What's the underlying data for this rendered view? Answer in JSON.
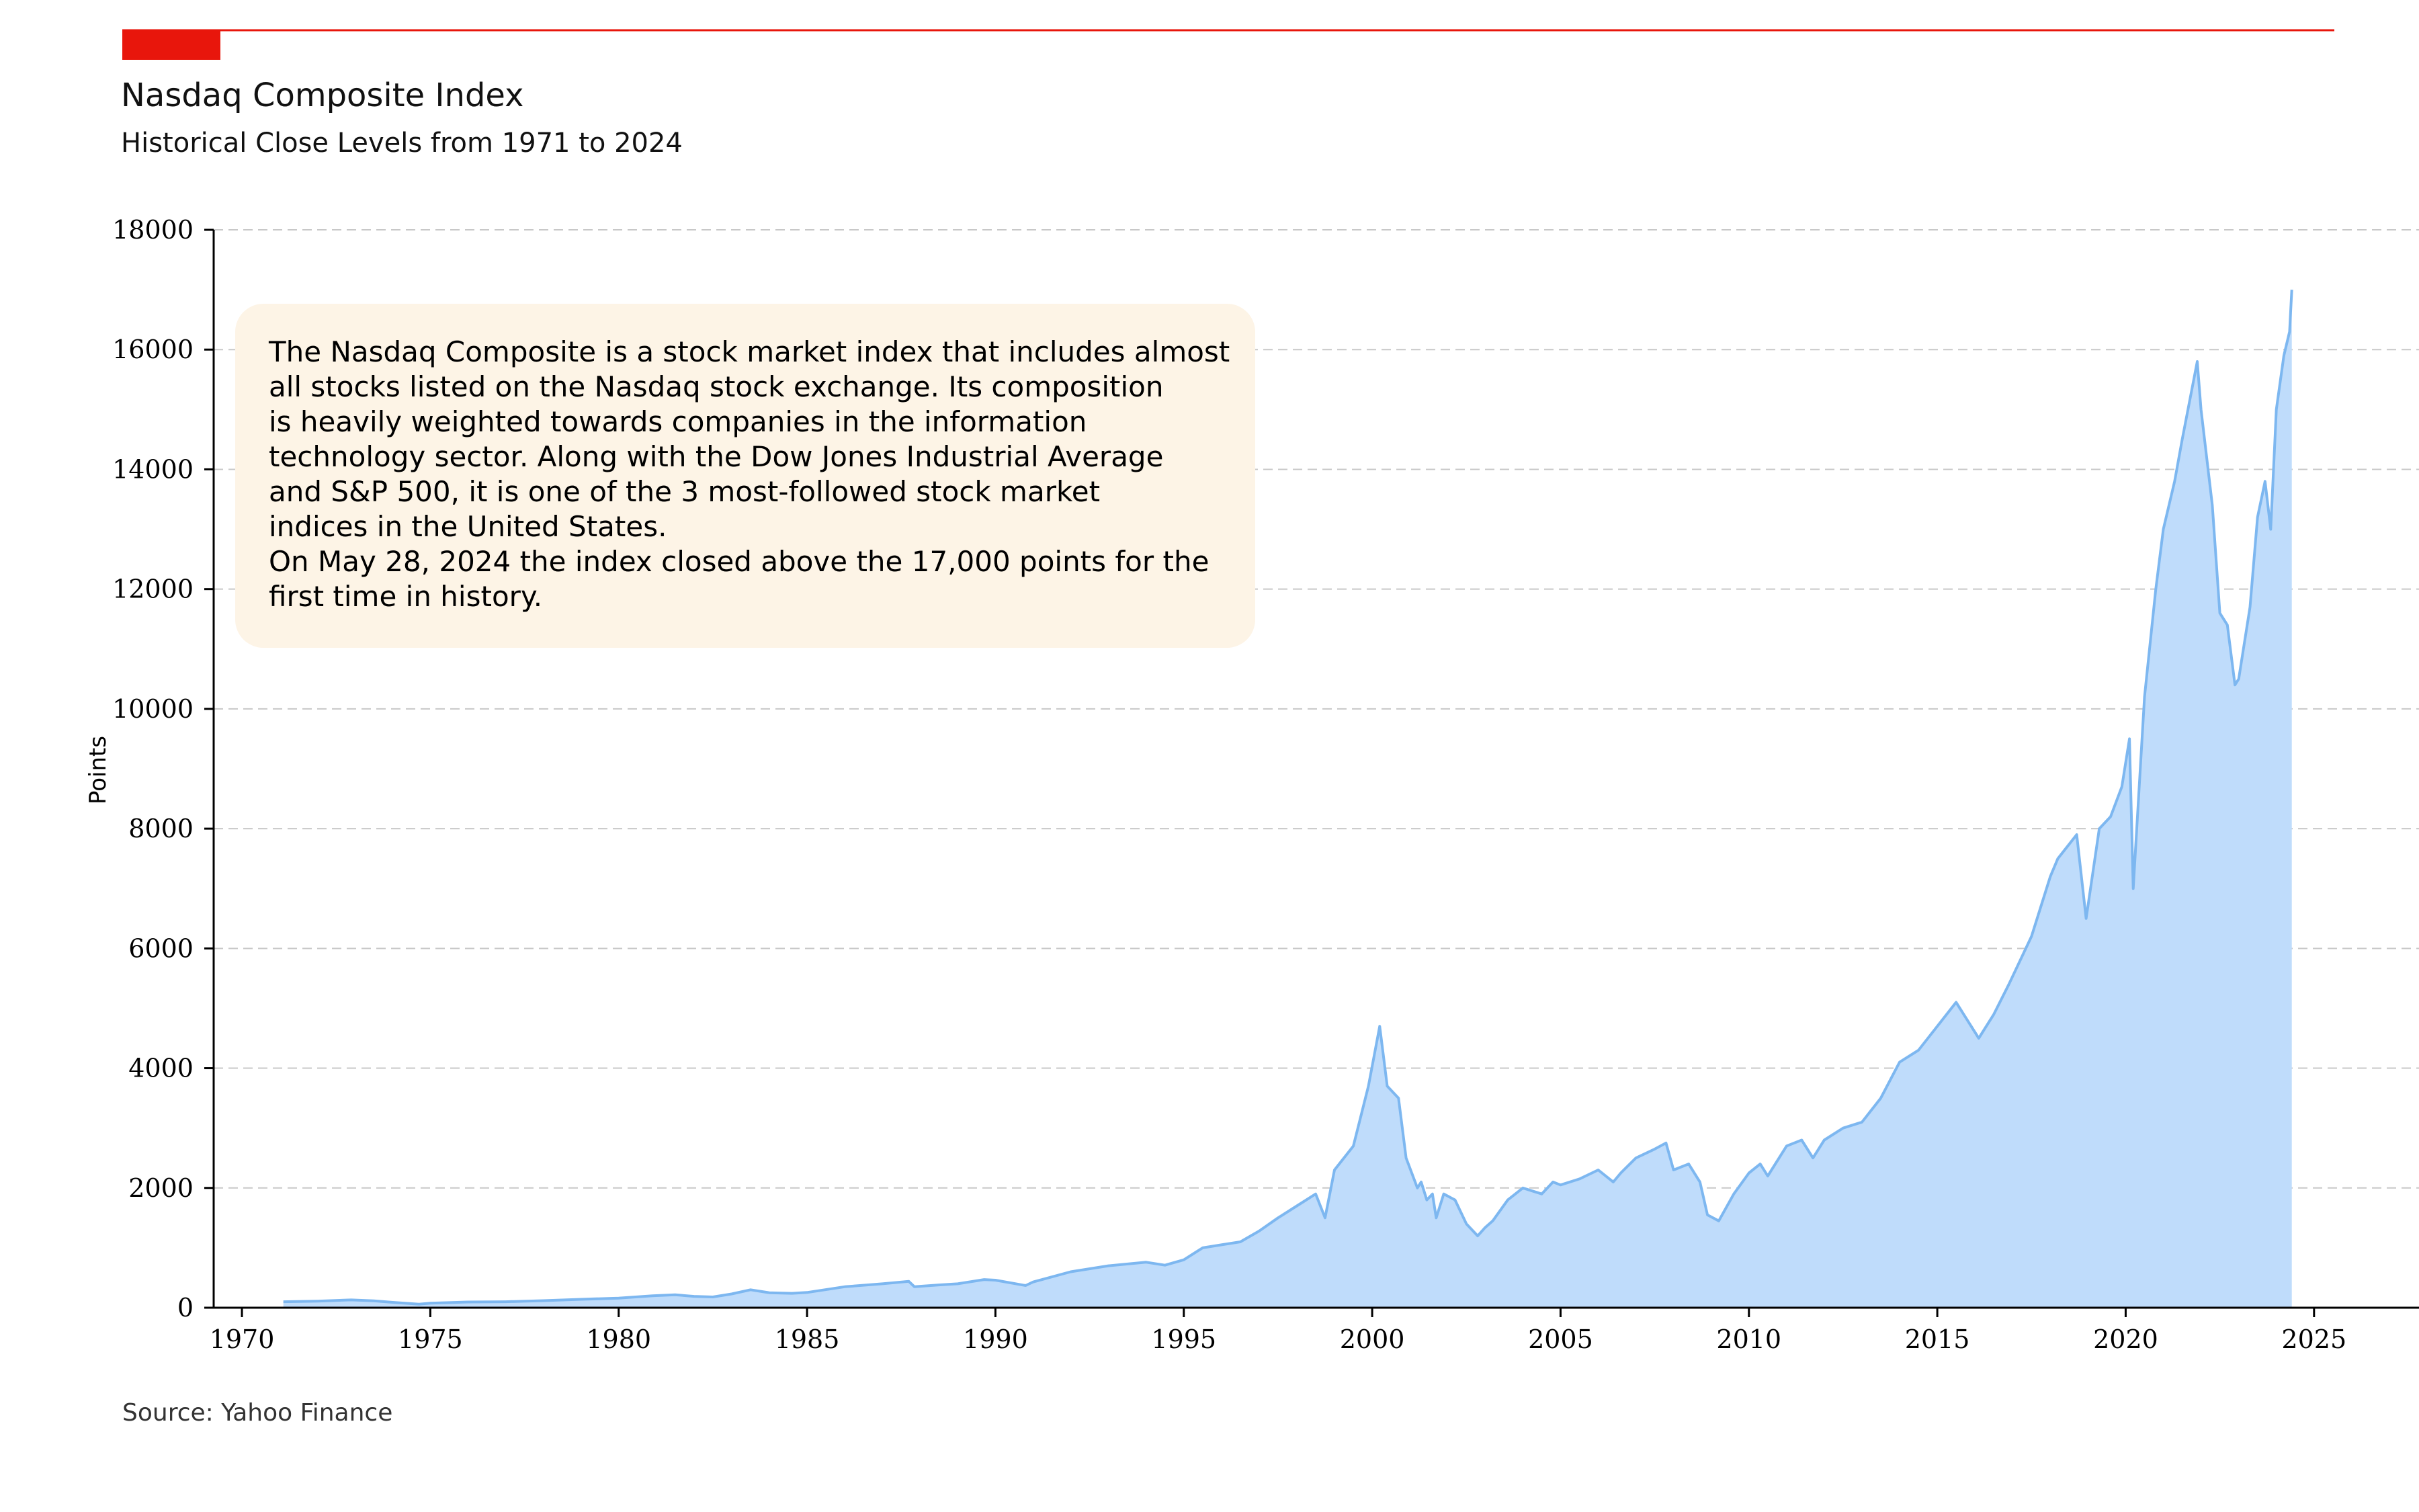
{
  "header": {
    "title": "Nasdaq Composite Index",
    "subtitle": "Historical Close Levels from 1971 to 2024",
    "accent_color": "#e8160c"
  },
  "annotation": {
    "lines": [
      "The Nasdaq Composite is a stock market index that includes almost",
      "all stocks listed on the Nasdaq stock exchange. Its composition",
      "is heavily weighted towards companies in the information",
      "technology sector. Along with the Dow Jones Industrial Average",
      "and S&P 500, it is one of the 3 most-followed stock market",
      "indices in the United States.",
      "On May 28, 2024 the index closed above the 17,000 points for the",
      "first time in history."
    ],
    "background_color": "#fdf4e6"
  },
  "footer": {
    "source": "Source:  Yahoo Finance"
  },
  "chart_data": {
    "type": "area",
    "ylabel": "Points",
    "xlabel": "",
    "xlim": [
      1969.25,
      2028.0
    ],
    "ylim": [
      0,
      18000
    ],
    "xticks": [
      1970,
      1975,
      1980,
      1985,
      1990,
      1995,
      2000,
      2005,
      2010,
      2015,
      2020,
      2025
    ],
    "yticks": [
      0,
      2000,
      4000,
      6000,
      8000,
      10000,
      12000,
      14000,
      16000,
      18000
    ],
    "grid": "horizontal dashed",
    "line_color": "#7db7f0",
    "fill_color": "#bfdcfb",
    "series": [
      {
        "x": [
          1971.1,
          1972.0,
          1972.9,
          1973.5,
          1974.0,
          1974.7,
          1975.0,
          1976.0,
          1977.0,
          1978.0,
          1979.0,
          1980.0,
          1980.9,
          1981.5,
          1982.0,
          1982.5,
          1983.0,
          1983.5,
          1984.0,
          1984.6,
          1985.0,
          1986.0,
          1987.0,
          1987.7,
          1987.85,
          1988.5,
          1989.0,
          1989.7,
          1990.0,
          1990.8,
          1991.0,
          1992.0,
          1993.0,
          1994.0,
          1994.5,
          1995.0,
          1995.5,
          1996.0,
          1996.5,
          1997.0,
          1997.5,
          1998.0,
          1998.5,
          1998.75,
          1999.0,
          1999.5,
          1999.9,
          2000.2,
          2000.4,
          2000.7,
          2000.9,
          2001.2,
          2001.3,
          2001.45,
          2001.6,
          2001.7,
          2001.9,
          2002.2,
          2002.5,
          2002.8,
          2003.0,
          2003.2,
          2003.6,
          2004.0,
          2004.5,
          2004.8,
          2005.0,
          2005.5,
          2006.0,
          2006.4,
          2006.6,
          2007.0,
          2007.5,
          2007.8,
          2008.0,
          2008.4,
          2008.7,
          2008.9,
          2009.2,
          2009.6,
          2010.0,
          2010.3,
          2010.5,
          2011.0,
          2011.4,
          2011.7,
          2012.0,
          2012.5,
          2013.0,
          2013.5,
          2014.0,
          2014.5,
          2015.0,
          2015.5,
          2015.8,
          2016.1,
          2016.5,
          2016.9,
          2017.5,
          2018.0,
          2018.2,
          2018.7,
          2018.95,
          2019.3,
          2019.6,
          2019.9,
          2020.1,
          2020.2,
          2020.5,
          2020.8,
          2021.0,
          2021.3,
          2021.5,
          2021.9,
          2022.0,
          2022.3,
          2022.5,
          2022.7,
          2022.9,
          2023.0,
          2023.3,
          2023.5,
          2023.7,
          2023.85,
          2024.0,
          2024.2,
          2024.35,
          2024.41
        ],
        "values": [
          100,
          110,
          130,
          115,
          90,
          60,
          75,
          95,
          100,
          118,
          140,
          160,
          200,
          215,
          190,
          180,
          230,
          300,
          250,
          240,
          255,
          350,
          400,
          440,
          350,
          380,
          400,
          470,
          460,
          370,
          430,
          600,
          700,
          760,
          710,
          800,
          1000,
          1050,
          1100,
          1280,
          1500,
          1700,
          1900,
          1500,
          2300,
          2700,
          3700,
          4700,
          3700,
          3500,
          2500,
          2000,
          2100,
          1800,
          1900,
          1500,
          1900,
          1800,
          1400,
          1200,
          1340,
          1450,
          1800,
          2000,
          1900,
          2100,
          2050,
          2150,
          2300,
          2100,
          2250,
          2500,
          2650,
          2750,
          2300,
          2400,
          2100,
          1550,
          1450,
          1900,
          2250,
          2400,
          2200,
          2700,
          2800,
          2500,
          2800,
          3000,
          3100,
          3500,
          4100,
          4300,
          4700,
          5100,
          4800,
          4500,
          4900,
          5400,
          6200,
          7200,
          7500,
          7900,
          6500,
          8000,
          8200,
          8700,
          9500,
          7000,
          10200,
          12000,
          13000,
          13800,
          14500,
          15800,
          15000,
          13400,
          11600,
          11400,
          10400,
          10500,
          11700,
          13200,
          13800,
          13000,
          15000,
          15900,
          16300,
          17000
        ]
      }
    ]
  }
}
